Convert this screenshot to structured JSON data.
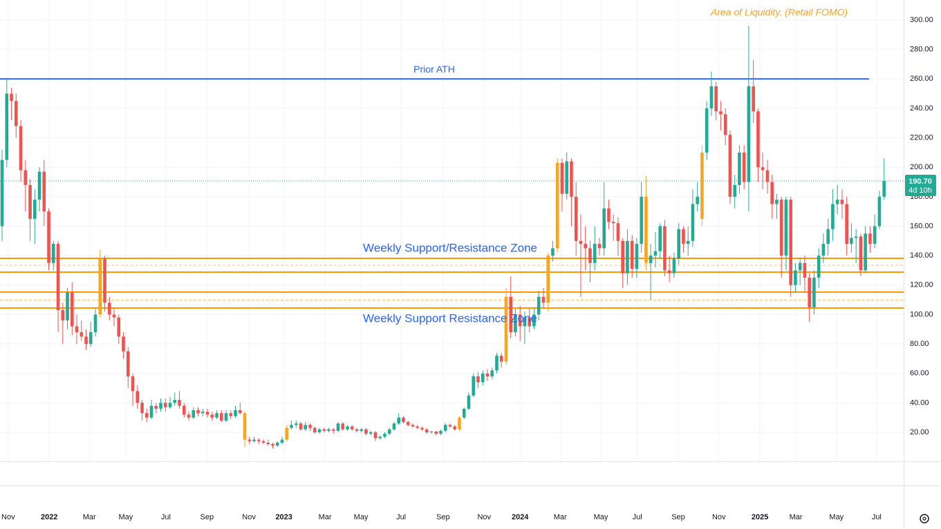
{
  "chart_data": {
    "type": "candlestick",
    "annotation": "Area of Liquidity. (Retail FOMO)",
    "annotation_color": "#f7a31c",
    "up_color": "#22ab94",
    "down_color": "#ef5350",
    "highlight_color": "#f5a623",
    "highlighted": [
      21,
      52,
      61,
      98,
      108,
      117,
      119,
      138,
      150
    ],
    "ylim": [
      0.3,
      313.6
    ],
    "yticks": [
      {
        "value": 20,
        "label": "20.00"
      },
      {
        "value": 40,
        "label": "40.00"
      },
      {
        "value": 60,
        "label": "60.00"
      },
      {
        "value": 80,
        "label": "80.00"
      },
      {
        "value": 100,
        "label": "100.00"
      },
      {
        "value": 120,
        "label": "120.00"
      },
      {
        "value": 140,
        "label": "140.00"
      },
      {
        "value": 160,
        "label": "160.00"
      },
      {
        "value": 180,
        "label": "180.00"
      },
      {
        "value": 200,
        "label": "200.00"
      },
      {
        "value": 220,
        "label": "220.00"
      },
      {
        "value": 240,
        "label": "240.00"
      },
      {
        "value": 260,
        "label": "260.00"
      },
      {
        "value": 280,
        "label": "280.00"
      },
      {
        "value": 300,
        "label": "300.00"
      }
    ],
    "xlim": [
      -0.45,
      193.2
    ],
    "xticks": [
      {
        "value": 1.3,
        "label": "Nov"
      },
      {
        "value": 10.1,
        "label": "2022"
      },
      {
        "value": 18.7,
        "label": "Mar"
      },
      {
        "value": 26.5,
        "label": "May"
      },
      {
        "value": 35.1,
        "label": "Jul"
      },
      {
        "value": 43.9,
        "label": "Sep"
      },
      {
        "value": 52.9,
        "label": "Nov"
      },
      {
        "value": 60.4,
        "label": "2023"
      },
      {
        "value": 69.2,
        "label": "Mar"
      },
      {
        "value": 76.9,
        "label": "May"
      },
      {
        "value": 85.5,
        "label": "Jul"
      },
      {
        "value": 94.5,
        "label": "Sep"
      },
      {
        "value": 103.3,
        "label": "Nov"
      },
      {
        "value": 111.0,
        "label": "2024"
      },
      {
        "value": 119.6,
        "label": "Mar"
      },
      {
        "value": 128.3,
        "label": "May"
      },
      {
        "value": 136.1,
        "label": "Jul"
      },
      {
        "value": 144.9,
        "label": "Sep"
      },
      {
        "value": 153.6,
        "label": "Nov"
      },
      {
        "value": 162.4,
        "label": "2025"
      },
      {
        "value": 170.1,
        "label": "Mar"
      },
      {
        "value": 178.8,
        "label": "May"
      },
      {
        "value": 187.4,
        "label": "Jul"
      }
    ],
    "grid": true,
    "levels": [
      {
        "value": 260,
        "label": "Prior ATH",
        "color": "#2962ff"
      }
    ],
    "zones": [
      {
        "label": "Weekly Support/Resistance Zone",
        "upper": 138.2,
        "mid": 133.5,
        "lower": 128.8,
        "color": "#ff9800",
        "label_color": "#2962ff"
      },
      {
        "label": "Weekly Support Resistance Zone",
        "upper": 115.2,
        "mid": 109.8,
        "lower": 104.4,
        "color": "#ff9800",
        "label_color": "#2962ff"
      }
    ],
    "last_price": {
      "value": 190.7,
      "label": "190.70"
    },
    "countdown": "4d 10h",
    "candles": [
      [
        160,
        212,
        150,
        205
      ],
      [
        205,
        260,
        200,
        250
      ],
      [
        250,
        254,
        232,
        245
      ],
      [
        245,
        250,
        220,
        228
      ],
      [
        228,
        232,
        190,
        198
      ],
      [
        198,
        205,
        170,
        188
      ],
      [
        188,
        192,
        150,
        165
      ],
      [
        165,
        185,
        148,
        178
      ],
      [
        178,
        200,
        170,
        197
      ],
      [
        197,
        205,
        160,
        170
      ],
      [
        170,
        172,
        130,
        135
      ],
      [
        135,
        150,
        130,
        148
      ],
      [
        148,
        150,
        88,
        103
      ],
      [
        103,
        108,
        80,
        96
      ],
      [
        96,
        118,
        90,
        115
      ],
      [
        115,
        122,
        86,
        92
      ],
      [
        92,
        100,
        80,
        88
      ],
      [
        88,
        96,
        82,
        85
      ],
      [
        85,
        90,
        76,
        80
      ],
      [
        80,
        95,
        78,
        88
      ],
      [
        88,
        104,
        85,
        100
      ],
      [
        100,
        144,
        98,
        138
      ],
      [
        138,
        140,
        102,
        108
      ],
      [
        108,
        112,
        96,
        100
      ],
      [
        100,
        104,
        92,
        98
      ],
      [
        98,
        100,
        80,
        85
      ],
      [
        85,
        88,
        70,
        75
      ],
      [
        75,
        78,
        50,
        58
      ],
      [
        58,
        60,
        38,
        48
      ],
      [
        48,
        52,
        36,
        40
      ],
      [
        40,
        42,
        28,
        33
      ],
      [
        33,
        36,
        27,
        30
      ],
      [
        30,
        42,
        29,
        38
      ],
      [
        38,
        40,
        33,
        36
      ],
      [
        36,
        43,
        34,
        40
      ],
      [
        40,
        43,
        34,
        37
      ],
      [
        37,
        44,
        36,
        40
      ],
      [
        40,
        47,
        38,
        42
      ],
      [
        42,
        48,
        36,
        38
      ],
      [
        38,
        40,
        30,
        32
      ],
      [
        32,
        34,
        28,
        30
      ],
      [
        30,
        37,
        29,
        35
      ],
      [
        35,
        37,
        31,
        33
      ],
      [
        33,
        36,
        31,
        34
      ],
      [
        34,
        36,
        30,
        32
      ],
      [
        32,
        34,
        28,
        30
      ],
      [
        30,
        35,
        29,
        33
      ],
      [
        33,
        35,
        27,
        28
      ],
      [
        28,
        35,
        27,
        33
      ],
      [
        33,
        35,
        29,
        31
      ],
      [
        31,
        38,
        30,
        35
      ],
      [
        35,
        40,
        32,
        33
      ],
      [
        33,
        34,
        10,
        15
      ],
      [
        15,
        17,
        12,
        14
      ],
      [
        14,
        17,
        13,
        15
      ],
      [
        15,
        16,
        12,
        14
      ],
      [
        14,
        15,
        12,
        13
      ],
      [
        13,
        15,
        11,
        12
      ],
      [
        12,
        13,
        9,
        11
      ],
      [
        11,
        14,
        10,
        13
      ],
      [
        13,
        17,
        12,
        15
      ],
      [
        15,
        25,
        14,
        23
      ],
      [
        23,
        28,
        22,
        25
      ],
      [
        25,
        28,
        23,
        26
      ],
      [
        26,
        27,
        21,
        22
      ],
      [
        22,
        27,
        21,
        25
      ],
      [
        25,
        26,
        21,
        23
      ],
      [
        23,
        24,
        19,
        20
      ],
      [
        20,
        23,
        19,
        22
      ],
      [
        22,
        23,
        20,
        21
      ],
      [
        21,
        23,
        20,
        22
      ],
      [
        22,
        23,
        19,
        21
      ],
      [
        21,
        27,
        20,
        26
      ],
      [
        26,
        27,
        21,
        22
      ],
      [
        22,
        25,
        21,
        24
      ],
      [
        24,
        25,
        21,
        22
      ],
      [
        22,
        23,
        20,
        21
      ],
      [
        21,
        23,
        20,
        22
      ],
      [
        22,
        23,
        18,
        19
      ],
      [
        19,
        21,
        18,
        20
      ],
      [
        20,
        21,
        14,
        16
      ],
      [
        16,
        18,
        15,
        17
      ],
      [
        17,
        20,
        16,
        19
      ],
      [
        19,
        23,
        18,
        22
      ],
      [
        22,
        27,
        21,
        26
      ],
      [
        26,
        33,
        25,
        30
      ],
      [
        30,
        31,
        26,
        27
      ],
      [
        27,
        28,
        24,
        25
      ],
      [
        25,
        26,
        23,
        24
      ],
      [
        24,
        25,
        22,
        23
      ],
      [
        23,
        24,
        21,
        22
      ],
      [
        22,
        23,
        19,
        20
      ],
      [
        20,
        21,
        19,
        20.5
      ],
      [
        20.5,
        21,
        18,
        19
      ],
      [
        19,
        22,
        18,
        21
      ],
      [
        21,
        26,
        20,
        25
      ],
      [
        25,
        26,
        23,
        24
      ],
      [
        24,
        25,
        21,
        22
      ],
      [
        22,
        31,
        21,
        30
      ],
      [
        30,
        37,
        29,
        36
      ],
      [
        36,
        47,
        35,
        45
      ],
      [
        45,
        60,
        44,
        58
      ],
      [
        58,
        61,
        50,
        54
      ],
      [
        54,
        62,
        52,
        60
      ],
      [
        60,
        63,
        55,
        58
      ],
      [
        58,
        64,
        56,
        62
      ],
      [
        62,
        74,
        60,
        72
      ],
      [
        72,
        74,
        64,
        68
      ],
      [
        68,
        118,
        66,
        112
      ],
      [
        112,
        126,
        84,
        88
      ],
      [
        88,
        104,
        85,
        100
      ],
      [
        100,
        106,
        82,
        92
      ],
      [
        92,
        102,
        80,
        98
      ],
      [
        98,
        104,
        88,
        92
      ],
      [
        92,
        104,
        90,
        100
      ],
      [
        100,
        116,
        96,
        112
      ],
      [
        112,
        118,
        104,
        108
      ],
      [
        108,
        142,
        102,
        140
      ],
      [
        140,
        150,
        136,
        145
      ],
      [
        145,
        206,
        142,
        203
      ],
      [
        203,
        206,
        170,
        182
      ],
      [
        182,
        210,
        178,
        204
      ],
      [
        204,
        206,
        160,
        180
      ],
      [
        180,
        190,
        140,
        150
      ],
      [
        150,
        168,
        112,
        148
      ],
      [
        148,
        160,
        130,
        145
      ],
      [
        145,
        150,
        122,
        135
      ],
      [
        135,
        160,
        130,
        148
      ],
      [
        148,
        152,
        140,
        145
      ],
      [
        145,
        190,
        140,
        172
      ],
      [
        172,
        178,
        158,
        163
      ],
      [
        163,
        168,
        150,
        162
      ],
      [
        162,
        166,
        140,
        150
      ],
      [
        150,
        152,
        118,
        128
      ],
      [
        128,
        158,
        120,
        150
      ],
      [
        150,
        154,
        125,
        131
      ],
      [
        131,
        152,
        125,
        148
      ],
      [
        148,
        190,
        142,
        180
      ],
      [
        180,
        194,
        130,
        135
      ],
      [
        135,
        148,
        110,
        140
      ],
      [
        140,
        156,
        132,
        143
      ],
      [
        143,
        162,
        138,
        160
      ],
      [
        160,
        164,
        126,
        130
      ],
      [
        130,
        140,
        122,
        128
      ],
      [
        128,
        142,
        125,
        138
      ],
      [
        138,
        162,
        134,
        158
      ],
      [
        158,
        160,
        142,
        148
      ],
      [
        148,
        160,
        140,
        150
      ],
      [
        150,
        185,
        146,
        175
      ],
      [
        175,
        190,
        170,
        180
      ],
      [
        165,
        215,
        160,
        210
      ],
      [
        210,
        245,
        205,
        240
      ],
      [
        240,
        265,
        235,
        255
      ],
      [
        255,
        258,
        232,
        238
      ],
      [
        238,
        245,
        225,
        236
      ],
      [
        236,
        240,
        215,
        222
      ],
      [
        222,
        225,
        175,
        180
      ],
      [
        180,
        195,
        172,
        188
      ],
      [
        188,
        215,
        182,
        210
      ],
      [
        210,
        215,
        185,
        190
      ],
      [
        190,
        296,
        170,
        255
      ],
      [
        255,
        273,
        230,
        238
      ],
      [
        238,
        240,
        190,
        200
      ],
      [
        200,
        210,
        185,
        198
      ],
      [
        198,
        205,
        182,
        190
      ],
      [
        190,
        195,
        165,
        175
      ],
      [
        175,
        182,
        165,
        178
      ],
      [
        178,
        180,
        125,
        140
      ],
      [
        140,
        180,
        130,
        178
      ],
      [
        178,
        180,
        112,
        120
      ],
      [
        120,
        135,
        115,
        130
      ],
      [
        130,
        138,
        120,
        135
      ],
      [
        135,
        140,
        115,
        125
      ],
      [
        125,
        128,
        95,
        105
      ],
      [
        105,
        130,
        100,
        125
      ],
      [
        125,
        145,
        118,
        140
      ],
      [
        140,
        155,
        135,
        148
      ],
      [
        148,
        165,
        140,
        158
      ],
      [
        158,
        185,
        150,
        175
      ],
      [
        175,
        188,
        168,
        178
      ],
      [
        178,
        185,
        165,
        175
      ],
      [
        175,
        180,
        140,
        148
      ],
      [
        148,
        162,
        142,
        152
      ],
      [
        152,
        158,
        135,
        153
      ],
      [
        153,
        155,
        126,
        130
      ],
      [
        130,
        160,
        128,
        155
      ],
      [
        155,
        160,
        142,
        148
      ],
      [
        148,
        168,
        145,
        160
      ],
      [
        160,
        184,
        158,
        180
      ],
      [
        180,
        206,
        178,
        190.7
      ]
    ]
  }
}
